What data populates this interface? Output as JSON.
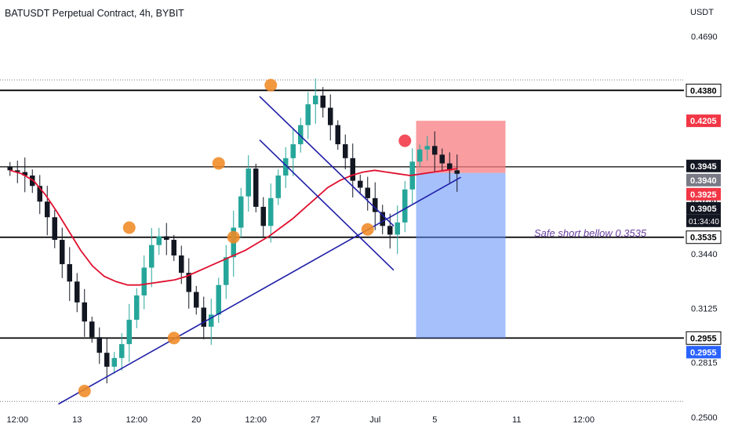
{
  "header": {
    "title": "BATUSDT Perpetual Contract, 4h, BYBIT",
    "currency": "USDT"
  },
  "colors": {
    "candle_up": "#26a69a",
    "candle_down": "#131722",
    "ma_line": "#e0102f",
    "trend_line": "#1f1fa8",
    "marker": "#f08a24",
    "marker_top": "#f23645",
    "stop_zone": "#f77c80",
    "target_zone": "#5b8cf7",
    "horizontal_level": "#000000",
    "annotation_text": "#6a3fa0"
  },
  "chart_data": {
    "type": "candlestick",
    "symbol": "BATUSDT Perpetual Contract",
    "interval": "4h",
    "exchange": "BYBIT",
    "y_axis": {
      "unit": "USDT",
      "range": [
        0.242,
        0.49
      ],
      "tick_labels": [
        "0.4690",
        "0.3750",
        "0.3440",
        "0.3125",
        "0.2815",
        "0.2500"
      ]
    },
    "x_axis": {
      "tick_labels": [
        "12:00",
        "13",
        "12:00",
        "20",
        "12:00",
        "27",
        "Jul",
        "5",
        "11",
        "12:00"
      ],
      "tick_bars": [
        1,
        9,
        17,
        25,
        33,
        41,
        49,
        57,
        68,
        77
      ]
    },
    "price_labels": [
      {
        "value": 0.438,
        "text": "0.4380",
        "style": "level"
      },
      {
        "value": 0.4205,
        "text": "0.4205",
        "style": "red"
      },
      {
        "value": 0.3945,
        "text": "0.3945",
        "style": "dark"
      },
      {
        "value": 0.394,
        "text": "0.3940",
        "style": "gray"
      },
      {
        "value": 0.3925,
        "text": "0.3925",
        "style": "red"
      },
      {
        "value": 0.3905,
        "text": "0.3905",
        "style": "dark"
      },
      {
        "value": 0.3535,
        "text": "0.3535",
        "style": "level"
      },
      {
        "value": 0.2955,
        "text": "0.2955",
        "style": "level"
      },
      {
        "value": 0.2955,
        "text": "0.2955",
        "style": "blue"
      }
    ],
    "countdown": "01:34:40",
    "current_price": 0.3905,
    "horizontal_levels": [
      0.438,
      0.394,
      0.3535,
      0.2955
    ],
    "dotted_levels": [
      0.444,
      0.259
    ],
    "position": {
      "direction": "short",
      "entry": 0.3905,
      "stop_loss": 0.4205,
      "take_profit": 0.2955,
      "start_bar": 55,
      "end_bar": 67
    },
    "annotation": "Safe short bellow 0.3535",
    "closes": [
      0.392,
      0.391,
      0.389,
      0.383,
      0.374,
      0.365,
      0.352,
      0.338,
      0.328,
      0.316,
      0.305,
      0.296,
      0.287,
      0.279,
      0.284,
      0.292,
      0.306,
      0.32,
      0.336,
      0.349,
      0.354,
      0.352,
      0.343,
      0.333,
      0.322,
      0.313,
      0.302,
      0.309,
      0.326,
      0.342,
      0.359,
      0.377,
      0.393,
      0.371,
      0.36,
      0.376,
      0.389,
      0.399,
      0.407,
      0.418,
      0.43,
      0.435,
      0.428,
      0.418,
      0.407,
      0.399,
      0.386,
      0.382,
      0.376,
      0.368,
      0.36,
      0.355,
      0.362,
      0.381,
      0.397,
      0.404,
      0.406,
      0.401,
      0.396,
      0.392,
      0.39
    ],
    "moving_average": [
      0.392,
      0.39,
      0.386,
      0.378,
      0.368,
      0.357,
      0.346,
      0.337,
      0.331,
      0.328,
      0.326,
      0.326,
      0.327,
      0.328,
      0.329,
      0.331,
      0.334,
      0.337,
      0.34,
      0.343,
      0.346,
      0.35,
      0.354,
      0.359,
      0.364,
      0.37,
      0.376,
      0.382,
      0.386,
      0.389,
      0.391,
      0.392,
      0.391,
      0.39,
      0.389,
      0.39,
      0.391,
      0.392,
      0.393
    ],
    "ma_start_bar": 0,
    "trend_lines": [
      {
        "bars": [
          7,
          61
        ],
        "values": [
          0.2575,
          0.388
        ]
      },
      {
        "bars": [
          34,
          52
        ],
        "values": [
          0.4345,
          0.36
        ]
      },
      {
        "bars": [
          34,
          52
        ],
        "values": [
          0.4095,
          0.3345
        ]
      }
    ],
    "markers": [
      {
        "bar": 10,
        "value": 0.265,
        "kind": "low"
      },
      {
        "bar": 16,
        "value": 0.359,
        "kind": "high"
      },
      {
        "bar": 22,
        "value": 0.2955,
        "kind": "low"
      },
      {
        "bar": 28,
        "value": 0.396,
        "kind": "high"
      },
      {
        "bar": 30,
        "value": 0.3535,
        "kind": "low"
      },
      {
        "bar": 35,
        "value": 0.441,
        "kind": "high"
      },
      {
        "bar": 48,
        "value": 0.358,
        "kind": "low"
      },
      {
        "bar": 53,
        "value": 0.409,
        "kind": "top"
      }
    ]
  }
}
